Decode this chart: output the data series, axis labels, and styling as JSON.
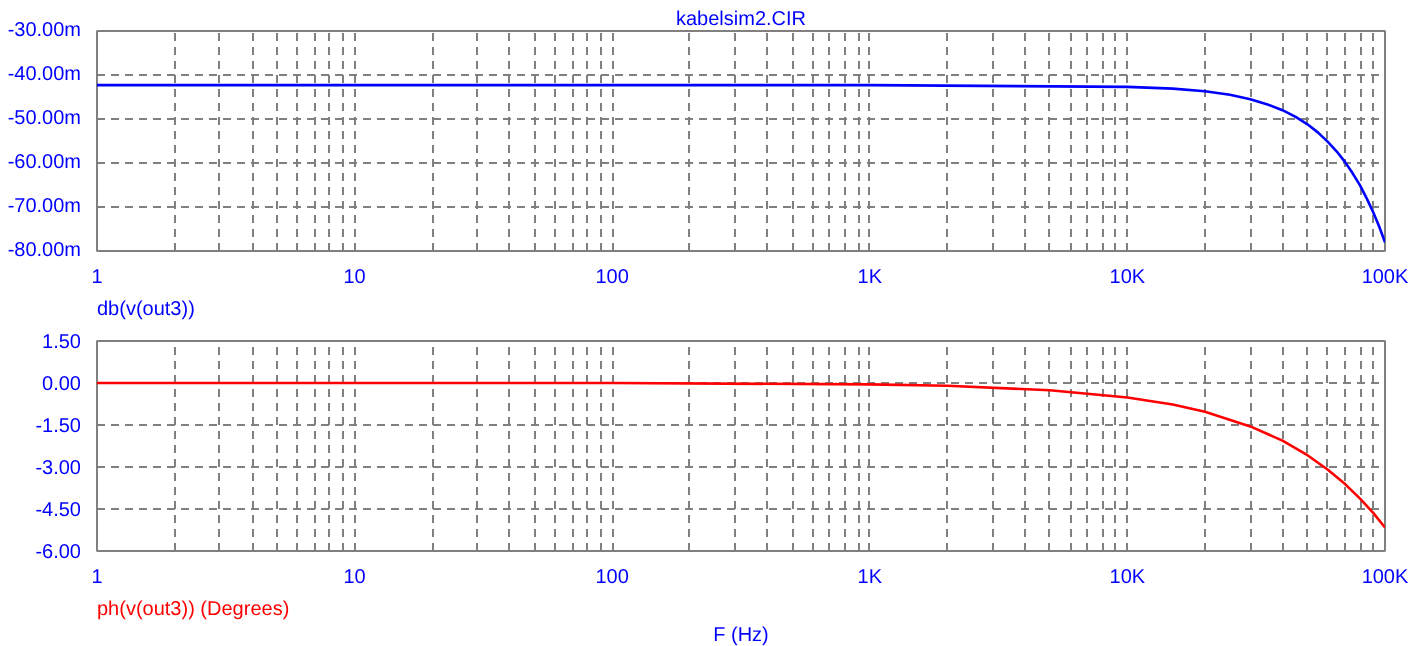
{
  "chart_data": [
    {
      "type": "line",
      "title": "kabelsim2.CIR",
      "annotations": [
        "db(v(out3))"
      ],
      "log": "x",
      "grid": true,
      "x": [
        1,
        10,
        100,
        1000,
        10000,
        15000,
        20000,
        25000,
        30000,
        35000,
        40000,
        45000,
        50000,
        55000,
        60000,
        65000,
        70000,
        75000,
        80000,
        85000,
        90000,
        95000,
        100000
      ],
      "series": [
        {
          "color": "#0000ff",
          "values": [
            -42.3,
            -42.3,
            -42.3,
            -42.3,
            -42.7,
            -43.1,
            -43.7,
            -44.5,
            -45.5,
            -46.7,
            -48.0,
            -49.5,
            -51.2,
            -53.1,
            -55.2,
            -57.4,
            -59.8,
            -62.4,
            -65.1,
            -68.1,
            -71.2,
            -74.5,
            -78.0
          ]
        }
      ],
      "xlim": [
        1,
        100000
      ],
      "xticks": [
        1,
        {
          "value": 2,
          "label": null
        },
        {
          "value": 3,
          "label": null
        },
        {
          "value": 4,
          "label": null
        },
        {
          "value": 5,
          "label": null
        },
        {
          "value": 6,
          "label": null
        },
        {
          "value": 7,
          "label": null
        },
        {
          "value": 8,
          "label": null
        },
        {
          "value": 9,
          "label": null
        },
        10,
        {
          "value": 20,
          "label": null
        },
        {
          "value": 30,
          "label": null
        },
        {
          "value": 40,
          "label": null
        },
        {
          "value": 50,
          "label": null
        },
        {
          "value": 60,
          "label": null
        },
        {
          "value": 70,
          "label": null
        },
        {
          "value": 80,
          "label": null
        },
        {
          "value": 90,
          "label": null
        },
        100,
        {
          "value": 200,
          "label": null
        },
        {
          "value": 300,
          "label": null
        },
        {
          "value": 400,
          "label": null
        },
        {
          "value": 500,
          "label": null
        },
        {
          "value": 600,
          "label": null
        },
        {
          "value": 700,
          "label": null
        },
        {
          "value": 800,
          "label": null
        },
        {
          "value": 900,
          "label": null
        },
        {
          "value": 1000,
          "label": "1K"
        },
        {
          "value": 2000,
          "label": null
        },
        {
          "value": 3000,
          "label": null
        },
        {
          "value": 4000,
          "label": null
        },
        {
          "value": 5000,
          "label": null
        },
        {
          "value": 6000,
          "label": null
        },
        {
          "value": 7000,
          "label": null
        },
        {
          "value": 8000,
          "label": null
        },
        {
          "value": 9000,
          "label": null
        },
        {
          "value": 10000,
          "label": "10K"
        },
        {
          "value": 20000,
          "label": null
        },
        {
          "value": 30000,
          "label": null
        },
        {
          "value": 40000,
          "label": null
        },
        {
          "value": 50000,
          "label": null
        },
        {
          "value": 60000,
          "label": null
        },
        {
          "value": 70000,
          "label": null
        },
        {
          "value": 80000,
          "label": null
        },
        {
          "value": 90000,
          "label": null
        },
        {
          "value": 100000,
          "label": "100K"
        }
      ],
      "ylim": [
        -80,
        -30
      ],
      "yticks": [
        {
          "value": -80,
          "label": "-80.00m"
        },
        {
          "value": -70,
          "label": "-70.00m"
        },
        {
          "value": -60,
          "label": "-60.00m"
        },
        {
          "value": -50,
          "label": "-50.00m"
        },
        {
          "value": -40,
          "label": "-40.00m"
        },
        {
          "value": -30,
          "label": "-30.00m"
        }
      ]
    },
    {
      "type": "line",
      "annotations": [
        "ph(v(out3)) (Degrees)"
      ],
      "xlabel": "F (Hz)",
      "log": "x",
      "grid": true,
      "x": [
        1,
        10,
        100,
        1000,
        2000,
        5000,
        10000,
        15000,
        20000,
        30000,
        40000,
        50000,
        60000,
        70000,
        80000,
        90000,
        100000
      ],
      "series": [
        {
          "color": "#ff0000",
          "values": [
            0,
            0,
            0,
            -0.05,
            -0.1,
            -0.26,
            -0.52,
            -0.77,
            -1.03,
            -1.55,
            -2.06,
            -2.58,
            -3.1,
            -3.61,
            -4.13,
            -4.64,
            -5.16
          ]
        }
      ],
      "xlim": [
        1,
        100000
      ],
      "xticks": [
        1,
        {
          "value": 2,
          "label": null
        },
        {
          "value": 3,
          "label": null
        },
        {
          "value": 4,
          "label": null
        },
        {
          "value": 5,
          "label": null
        },
        {
          "value": 6,
          "label": null
        },
        {
          "value": 7,
          "label": null
        },
        {
          "value": 8,
          "label": null
        },
        {
          "value": 9,
          "label": null
        },
        10,
        {
          "value": 20,
          "label": null
        },
        {
          "value": 30,
          "label": null
        },
        {
          "value": 40,
          "label": null
        },
        {
          "value": 50,
          "label": null
        },
        {
          "value": 60,
          "label": null
        },
        {
          "value": 70,
          "label": null
        },
        {
          "value": 80,
          "label": null
        },
        {
          "value": 90,
          "label": null
        },
        100,
        {
          "value": 200,
          "label": null
        },
        {
          "value": 300,
          "label": null
        },
        {
          "value": 400,
          "label": null
        },
        {
          "value": 500,
          "label": null
        },
        {
          "value": 600,
          "label": null
        },
        {
          "value": 700,
          "label": null
        },
        {
          "value": 800,
          "label": null
        },
        {
          "value": 900,
          "label": null
        },
        {
          "value": 1000,
          "label": "1K"
        },
        {
          "value": 2000,
          "label": null
        },
        {
          "value": 3000,
          "label": null
        },
        {
          "value": 4000,
          "label": null
        },
        {
          "value": 5000,
          "label": null
        },
        {
          "value": 6000,
          "label": null
        },
        {
          "value": 7000,
          "label": null
        },
        {
          "value": 8000,
          "label": null
        },
        {
          "value": 9000,
          "label": null
        },
        {
          "value": 10000,
          "label": "10K"
        },
        {
          "value": 20000,
          "label": null
        },
        {
          "value": 30000,
          "label": null
        },
        {
          "value": 40000,
          "label": null
        },
        {
          "value": 50000,
          "label": null
        },
        {
          "value": 60000,
          "label": null
        },
        {
          "value": 70000,
          "label": null
        },
        {
          "value": 80000,
          "label": null
        },
        {
          "value": 90000,
          "label": null
        },
        {
          "value": 100000,
          "label": "100K"
        }
      ],
      "ylim": [
        -6,
        1.5
      ],
      "yticks": [
        {
          "value": -6,
          "label": "-6.00"
        },
        {
          "value": -4.5,
          "label": "-4.50"
        },
        {
          "value": -3,
          "label": "-3.00"
        },
        {
          "value": -1.5,
          "label": "-1.50"
        },
        {
          "value": 0,
          "label": "0.00"
        },
        {
          "value": 1.5,
          "label": "1.50"
        }
      ]
    }
  ]
}
